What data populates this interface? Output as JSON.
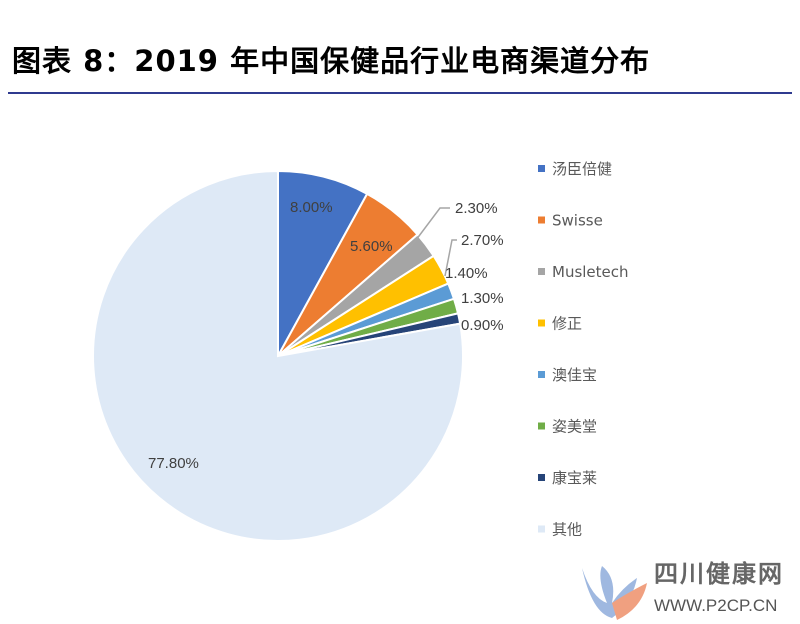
{
  "title": "图表 8：2019 年中国保健品行业电商渠道分布",
  "chart_data": {
    "type": "pie",
    "title": "",
    "start": "top",
    "direction": "clockwise",
    "legend_placement": "right",
    "slices": [
      {
        "name": "汤臣倍健",
        "value": 8.0,
        "label": "8.00%",
        "color": "#4472c4"
      },
      {
        "name": "Swisse",
        "value": 5.6,
        "label": "5.60%",
        "color": "#ed7d31"
      },
      {
        "name": "Musletech",
        "value": 2.3,
        "label": "2.30%",
        "color": "#a5a5a5"
      },
      {
        "name": "修正",
        "value": 2.7,
        "label": "2.70%",
        "color": "#ffc000"
      },
      {
        "name": "澳佳宝",
        "value": 1.4,
        "label": "1.40%",
        "color": "#5b9bd5"
      },
      {
        "name": "姿美堂",
        "value": 1.3,
        "label": "1.30%",
        "color": "#70ad47"
      },
      {
        "name": "康宝莱",
        "value": 0.9,
        "label": "0.90%",
        "color": "#264478"
      },
      {
        "name": "其他",
        "value": 77.8,
        "label": "77.80%",
        "color": "#dee9f6"
      }
    ]
  },
  "watermark": {
    "name_cn": "四川健康网",
    "url": "WWW.P2CP.CN"
  }
}
